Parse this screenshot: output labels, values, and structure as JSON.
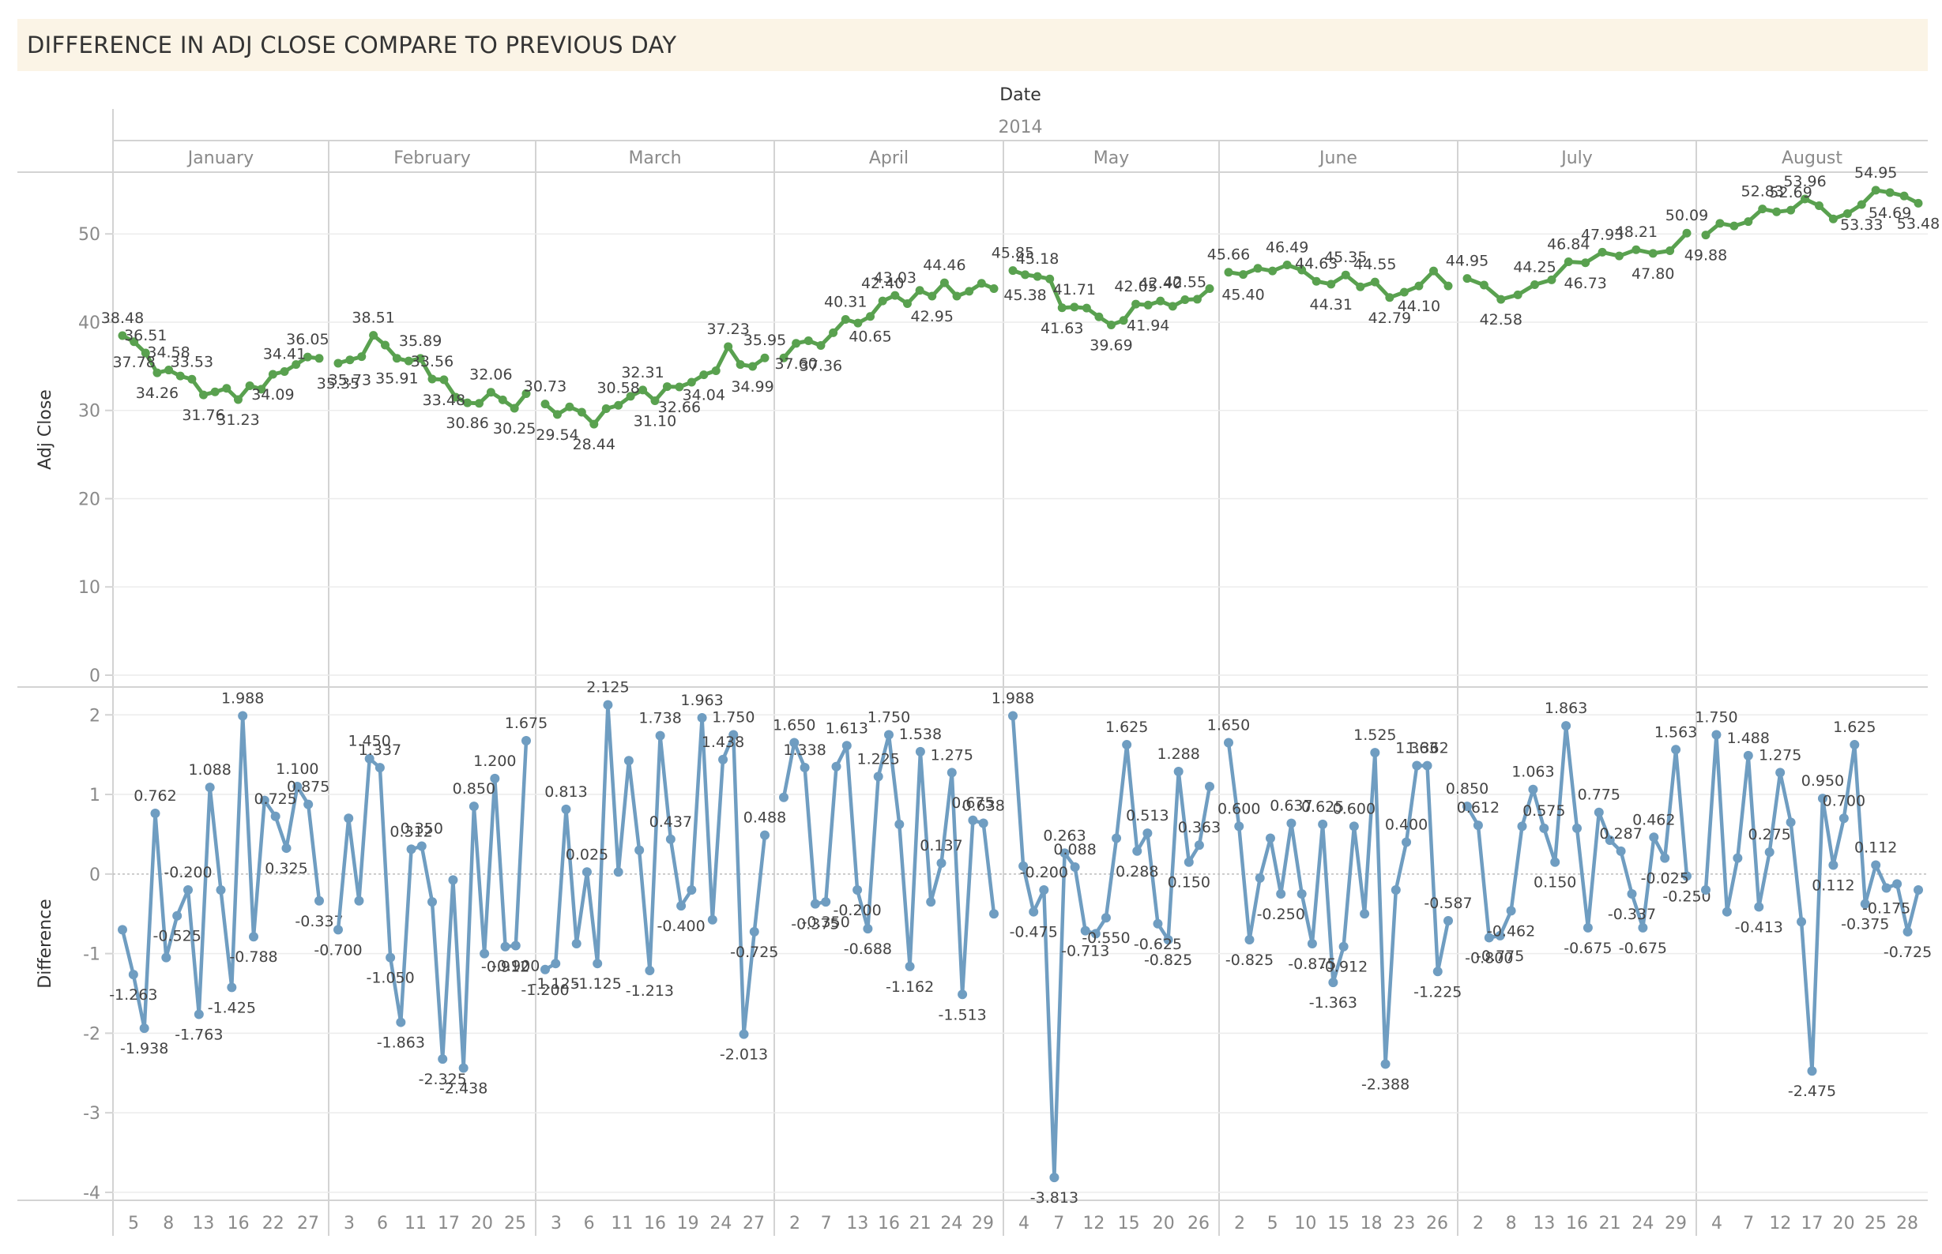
{
  "title": "DIFFERENCE IN ADJ CLOSE COMPARE TO PREVIOUS DAY",
  "chart_data": {
    "type": "line",
    "column_header": "Date",
    "year": "2014",
    "months": [
      "January",
      "February",
      "March",
      "April",
      "May",
      "June",
      "July",
      "August"
    ],
    "x_tick_labels": [
      [
        "5",
        "8",
        "13",
        "16",
        "22",
        "27"
      ],
      [
        "3",
        "6",
        "11",
        "17",
        "20",
        "25"
      ],
      [
        "3",
        "6",
        "11",
        "16",
        "19",
        "24",
        "27"
      ],
      [
        "2",
        "7",
        "13",
        "16",
        "21",
        "24",
        "29"
      ],
      [
        "4",
        "7",
        "12",
        "15",
        "20",
        "26"
      ],
      [
        "2",
        "5",
        "10",
        "15",
        "18",
        "23",
        "26"
      ],
      [
        "2",
        "8",
        "13",
        "16",
        "21",
        "24",
        "29"
      ],
      [
        "4",
        "7",
        "12",
        "17",
        "20",
        "25",
        "28"
      ]
    ],
    "panels": [
      {
        "ylabel": "Adj Close",
        "ylim": [
          0,
          57
        ],
        "yticks": [
          0,
          10,
          20,
          30,
          40,
          50
        ],
        "color": "#59a14f",
        "series": [
          [
            38.48,
            37.78,
            36.51,
            34.26,
            34.58,
            33.9,
            33.53,
            31.76,
            32.1,
            32.5,
            31.23,
            32.8,
            32.4,
            34.09,
            34.41,
            35.2,
            36.05,
            35.9
          ],
          [
            35.35,
            35.73,
            36.1,
            38.51,
            37.4,
            35.91,
            35.6,
            35.89,
            33.56,
            33.48,
            31.5,
            30.86,
            30.8,
            32.06,
            31.2,
            30.25,
            31.9
          ],
          [
            30.73,
            29.54,
            30.4,
            29.8,
            28.44,
            30.2,
            30.58,
            31.6,
            32.31,
            31.1,
            32.7,
            32.66,
            33.2,
            34.04,
            34.5,
            37.23,
            35.2,
            34.99,
            35.95
          ],
          [
            35.95,
            37.6,
            37.9,
            37.36,
            38.8,
            40.31,
            39.9,
            40.65,
            42.4,
            43.03,
            42.1,
            43.6,
            42.95,
            44.46,
            42.95,
            43.5,
            44.4,
            43.8
          ],
          [
            45.85,
            45.38,
            45.18,
            44.9,
            41.63,
            41.71,
            41.6,
            40.6,
            39.69,
            40.2,
            42.05,
            41.94,
            42.4,
            41.8,
            42.55,
            42.6,
            43.8
          ],
          [
            45.66,
            45.4,
            46.1,
            45.8,
            46.49,
            45.9,
            44.63,
            44.31,
            45.35,
            44.0,
            44.55,
            42.79,
            43.4,
            44.1,
            45.8,
            44.1
          ],
          [
            44.95,
            44.2,
            42.58,
            43.1,
            44.25,
            44.8,
            46.84,
            46.73,
            47.93,
            47.5,
            48.21,
            47.8,
            48.1,
            50.09
          ],
          [
            49.88,
            51.2,
            50.9,
            51.4,
            52.83,
            52.5,
            52.69,
            53.96,
            53.2,
            51.7,
            52.3,
            53.33,
            54.95,
            54.69,
            54.3,
            53.48
          ]
        ],
        "labels": [
          [
            "38.48",
            "37.78",
            "36.51",
            "34.26",
            "34.58",
            "31.76",
            "33.53",
            "31.23",
            "34.09",
            "34.41",
            "36.05"
          ],
          [
            "35.35",
            "35.73",
            "38.51",
            "35.91",
            "35.89",
            "33.56",
            "33.48",
            "30.86",
            "32.06",
            "30.25"
          ],
          [
            "30.73",
            "29.54",
            "28.44",
            "30.58",
            "32.31",
            "31.10",
            "32.66",
            "34.04",
            "37.23",
            "34.99",
            "35.95"
          ],
          [
            "37.60",
            "37.36",
            "40.31",
            "40.65",
            "42.40",
            "43.03",
            "42.95",
            "44.46"
          ],
          [
            "45.85",
            "45.38",
            "45.18",
            "41.63",
            "41.71",
            "39.69",
            "42.05",
            "41.94",
            "42.40",
            "42.55"
          ],
          [
            "45.66",
            "45.40",
            "46.49",
            "44.63",
            "44.31",
            "45.35",
            "44.55",
            "42.79",
            "44.10"
          ],
          [
            "44.95",
            "42.58",
            "44.25",
            "46.84",
            "46.73",
            "47.93",
            "48.21",
            "47.80",
            "50.09"
          ],
          [
            "49.88",
            "52.83",
            "52.69",
            "53.96",
            "53.33",
            "54.95",
            "54.69",
            "53.48"
          ]
        ]
      },
      {
        "ylabel": "Difference",
        "ylim": [
          -4.1,
          2.35
        ],
        "yticks": [
          -4,
          -3,
          -2,
          -1,
          0,
          1,
          2
        ],
        "color": "#6f9dc1",
        "series": [
          [
            -0.7,
            -1.263,
            -1.938,
            0.762,
            -1.05,
            -0.525,
            -0.2,
            -1.763,
            1.088,
            -0.2,
            -1.425,
            1.988,
            -0.788,
            0.925,
            0.725,
            0.325,
            1.1,
            0.875,
            -0.337
          ],
          [
            -0.7,
            0.7,
            -0.337,
            1.45,
            1.337,
            -1.05,
            -1.863,
            0.312,
            0.35,
            -0.35,
            -2.325,
            -0.075,
            -2.438,
            0.85,
            -1.0,
            1.2,
            -0.912,
            -0.9,
            1.675
          ],
          [
            -1.2,
            -1.125,
            0.813,
            -0.875,
            0.025,
            -1.125,
            2.125,
            0.025,
            1.425,
            0.3,
            -1.213,
            1.738,
            0.437,
            -0.4,
            -0.2,
            1.963,
            -0.575,
            1.438,
            1.75,
            -2.013,
            -0.725,
            0.488
          ],
          [
            0.963,
            1.65,
            1.338,
            -0.375,
            -0.35,
            1.35,
            1.613,
            -0.2,
            -0.688,
            1.225,
            1.75,
            0.625,
            -1.162,
            1.538,
            -0.35,
            0.137,
            1.275,
            -1.513,
            0.675,
            0.638,
            -0.5
          ],
          [
            1.988,
            0.1,
            -0.475,
            -0.2,
            -3.813,
            0.263,
            0.088,
            -0.713,
            -0.75,
            -0.55,
            0.45,
            1.625,
            0.288,
            0.513,
            -0.625,
            -0.825,
            1.288,
            0.15,
            0.363,
            1.1
          ],
          [
            1.65,
            0.6,
            -0.825,
            -0.05,
            0.45,
            -0.25,
            0.637,
            -0.25,
            -0.875,
            0.625,
            -1.363,
            -0.912,
            0.6,
            -0.5,
            1.525,
            -2.388,
            -0.2,
            0.4,
            1.363,
            1.362,
            -1.225,
            -0.587
          ],
          [
            0.85,
            0.612,
            -0.8,
            -0.775,
            -0.462,
            0.6,
            1.063,
            0.575,
            0.15,
            1.863,
            0.575,
            -0.675,
            0.775,
            0.425,
            0.287,
            -0.25,
            -0.675,
            0.462,
            0.2,
            1.563,
            -0.025
          ],
          [
            -0.2,
            1.75,
            -0.475,
            0.2,
            1.488,
            -0.413,
            0.275,
            1.275,
            0.65,
            -0.6,
            -2.475,
            0.95,
            0.112,
            0.7,
            1.625,
            -0.375,
            0.112,
            -0.175,
            -0.125,
            -0.725,
            -0.2
          ]
        ],
        "labels": [
          [
            "-1.938",
            "0.762",
            "-1.263",
            "-0.525",
            "-0.200",
            "-1.763",
            "1.088",
            "-1.425",
            "1.988",
            "-0.788",
            "0.725",
            "0.325",
            "1.100",
            "0.875",
            "-0.337"
          ],
          [
            "1.450",
            "-0.700",
            "1.337",
            "-1.050",
            "-1.863",
            "0.312",
            "0.350",
            "-2.325",
            "0.850",
            "-2.438",
            "1.200",
            "-0.912",
            "-0.900",
            "1.675"
          ],
          [
            "-1.200",
            "-1.125",
            "0.813",
            "2.125",
            "-1.125",
            "0.025",
            "1.738",
            "-1.213",
            "0.437",
            "-0.400",
            "1.963",
            "1.438",
            "1.750",
            "-0.725",
            "-2.013",
            "0.488"
          ],
          [
            "1.650",
            "1.338",
            "-0.375",
            "-0.350",
            "1.613",
            "-0.688",
            "-0.200",
            "1.750",
            "1.225",
            "-1.162",
            "1.538",
            "1.275",
            "0.137",
            "-1.513",
            "0.638",
            "0.675"
          ],
          [
            "1.988",
            "-0.200",
            "-0.475",
            "0.088",
            "-3.813",
            "0.263",
            "-0.713",
            "1.625",
            "-0.550",
            "0.288",
            "0.513",
            "-0.625",
            "1.288",
            "-0.825",
            "0.363",
            "0.150"
          ],
          [
            "1.650",
            "0.600",
            "-0.825",
            "-0.250",
            "0.637",
            "-0.875",
            "0.600",
            "0.625",
            "-0.912",
            "-1.363",
            "1.525",
            "-2.388",
            "0.400",
            "1.363",
            "1.362",
            "-0.587",
            "-1.225"
          ],
          [
            "0.850",
            "-0.337",
            "0.612",
            "-0.800",
            "-0.775",
            "1.063",
            "-0.462",
            "0.575",
            "0.150",
            "1.863",
            "-0.675",
            "0.775",
            "-0.250",
            "0.287",
            "0.462",
            "-0.675",
            "1.563",
            "-0.025"
          ],
          [
            "1.750",
            "1.488",
            "-0.413",
            "0.275",
            "1.275",
            "-2.475",
            "0.950",
            "0.112",
            "1.625",
            "0.700",
            "-0.375",
            "0.112",
            "-0.175",
            "-0.725"
          ]
        ]
      }
    ]
  }
}
